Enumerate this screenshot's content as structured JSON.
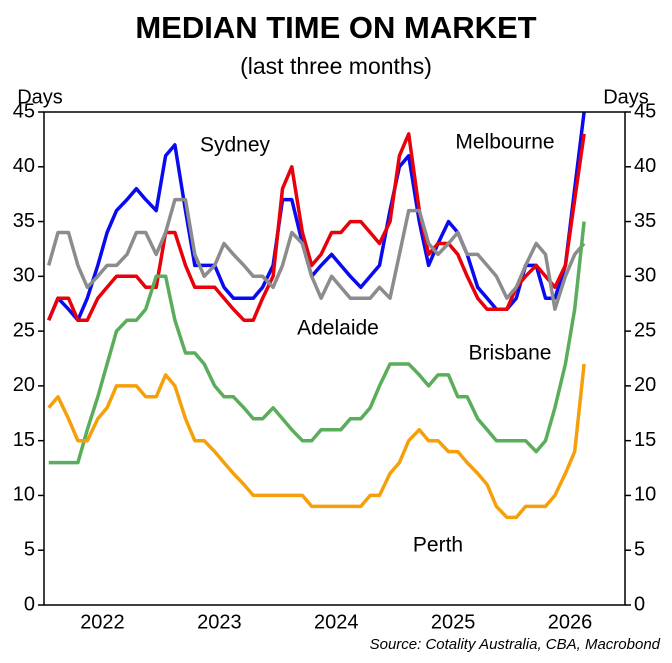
{
  "chart_data": {
    "type": "line",
    "title": "MEDIAN TIME ON MARKET",
    "subtitle": "(last three months)",
    "ylabel": "Days",
    "source": "Source: Cotality Australia, CBA, Macrobond",
    "x": [
      2022.04,
      2022.12,
      2022.21,
      2022.29,
      2022.37,
      2022.46,
      2022.54,
      2022.62,
      2022.71,
      2022.79,
      2022.87,
      2022.96,
      2023.04,
      2023.12,
      2023.21,
      2023.29,
      2023.37,
      2023.46,
      2023.54,
      2023.62,
      2023.71,
      2023.79,
      2023.87,
      2023.96,
      2024.04,
      2024.12,
      2024.21,
      2024.29,
      2024.37,
      2024.46,
      2024.54,
      2024.62,
      2024.71,
      2024.79,
      2024.87,
      2024.96,
      2025.04,
      2025.12,
      2025.21,
      2025.29,
      2025.37,
      2025.46,
      2025.54,
      2025.62,
      2025.71,
      2025.79,
      2025.87,
      2025.96,
      2026.04,
      2026.12,
      2026.21,
      2026.29,
      2026.37,
      2026.46,
      2026.54,
      2026.62
    ],
    "xlim": [
      2022,
      2026.97
    ],
    "xticks": [
      {
        "value": 2022.5,
        "label": "2022"
      },
      {
        "value": 2023.5,
        "label": "2023"
      },
      {
        "value": 2024.5,
        "label": "2024"
      },
      {
        "value": 2025.5,
        "label": "2025"
      },
      {
        "value": 2026.5,
        "label": "2026"
      }
    ],
    "ylim": [
      0,
      45
    ],
    "yticks": [
      0,
      5,
      10,
      15,
      20,
      25,
      30,
      35,
      40,
      45
    ],
    "series": [
      {
        "name": "Sydney",
        "color": "#0a0af0",
        "values": [
          26,
          28,
          27,
          26,
          28,
          31,
          34,
          36,
          37,
          38,
          37,
          36,
          41,
          42,
          36,
          31,
          31,
          31,
          29,
          28,
          28,
          28,
          29,
          31,
          37,
          37,
          33,
          30,
          31,
          32,
          31,
          30,
          29,
          30,
          31,
          36,
          40,
          41,
          35,
          31,
          33,
          35,
          34,
          32,
          29,
          28,
          27,
          27,
          28,
          31,
          31,
          28,
          28,
          31,
          38,
          45
        ]
      },
      {
        "name": "Melbourne",
        "color": "#e8000b",
        "values": [
          26,
          28,
          28,
          26,
          26,
          28,
          29,
          30,
          30,
          30,
          29,
          29,
          34,
          34,
          31,
          29,
          29,
          29,
          28,
          27,
          26,
          26,
          28,
          30,
          38,
          40,
          34,
          31,
          32,
          34,
          34,
          35,
          35,
          34,
          33,
          35,
          41,
          43,
          36,
          32,
          33,
          33,
          32,
          30,
          28,
          27,
          27,
          27,
          29,
          30,
          31,
          30,
          29,
          31,
          37,
          43
        ]
      },
      {
        "name": "Adelaide",
        "color": "#8c8c8c",
        "values": [
          31,
          34,
          34,
          31,
          29,
          30,
          31,
          31,
          32,
          34,
          34,
          32,
          34,
          37,
          37,
          32,
          30,
          31,
          33,
          32,
          31,
          30,
          30,
          29,
          31,
          34,
          33,
          30,
          28,
          30,
          29,
          28,
          28,
          28,
          29,
          28,
          32,
          36,
          36,
          33,
          32,
          33,
          34,
          32,
          32,
          31,
          30,
          28,
          29,
          31,
          33,
          32,
          27,
          30,
          32,
          33
        ]
      },
      {
        "name": "Brisbane",
        "color": "#5aad5a",
        "values": [
          13,
          13,
          13,
          13,
          16,
          19,
          22,
          25,
          26,
          26,
          27,
          30,
          30,
          26,
          23,
          23,
          22,
          20,
          19,
          19,
          18,
          17,
          17,
          18,
          17,
          16,
          15,
          15,
          16,
          16,
          16,
          17,
          17,
          18,
          20,
          22,
          22,
          22,
          21,
          20,
          21,
          21,
          19,
          19,
          17,
          16,
          15,
          15,
          15,
          15,
          14,
          15,
          18,
          22,
          27,
          35
        ]
      },
      {
        "name": "Perth",
        "color": "#f5a00a",
        "values": [
          18,
          19,
          17,
          15,
          15,
          17,
          18,
          20,
          20,
          20,
          19,
          19,
          21,
          20,
          17,
          15,
          15,
          14,
          13,
          12,
          11,
          10,
          10,
          10,
          10,
          10,
          10,
          9,
          9,
          9,
          9,
          9,
          9,
          10,
          10,
          12,
          13,
          15,
          16,
          15,
          15,
          14,
          14,
          13,
          12,
          11,
          9,
          8,
          8,
          9,
          9,
          9,
          10,
          12,
          14,
          22
        ]
      }
    ]
  }
}
